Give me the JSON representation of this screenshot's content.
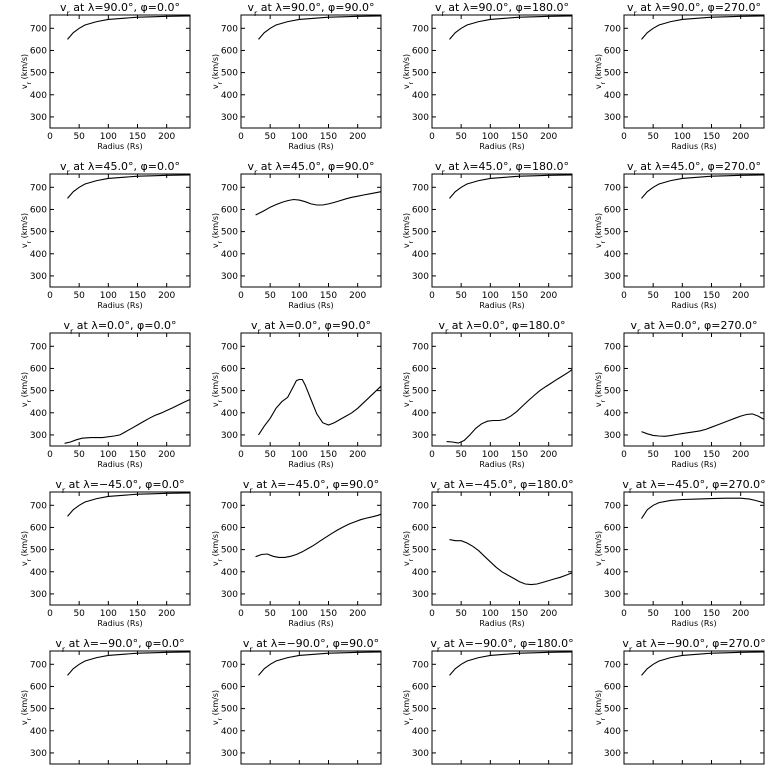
{
  "figure": {
    "axes": {
      "xlabel": "Radius (Rs)",
      "ylabel": "vr (km/s)",
      "xlim": [
        0,
        240
      ],
      "ylim": [
        250,
        760
      ],
      "xticks": [
        0,
        50,
        100,
        150,
        200
      ],
      "yticks": [
        300,
        400,
        500,
        600,
        700
      ],
      "grid": false
    },
    "line_color": "#000000"
  },
  "chart_data": [
    {
      "type": "line",
      "title": "vr at λ=90.0°, φ=0.0°",
      "xlabel": "Radius (Rs)",
      "ylabel": "vr (km/s)",
      "xlim": [
        0,
        240
      ],
      "ylim": [
        250,
        760
      ],
      "series": [
        {
          "x": [
            30,
            40,
            50,
            60,
            80,
            100,
            125,
            150,
            175,
            200,
            225,
            240
          ],
          "y": [
            650,
            680,
            700,
            715,
            730,
            740,
            745,
            750,
            752,
            754,
            755,
            756
          ]
        }
      ]
    },
    {
      "type": "line",
      "title": "vr at λ=90.0°, φ=90.0°",
      "xlabel": "Radius (Rs)",
      "ylabel": "vr (km/s)",
      "xlim": [
        0,
        240
      ],
      "ylim": [
        250,
        760
      ],
      "series": [
        {
          "x": [
            30,
            40,
            50,
            60,
            80,
            100,
            125,
            150,
            175,
            200,
            225,
            240
          ],
          "y": [
            650,
            680,
            700,
            715,
            730,
            740,
            745,
            750,
            752,
            754,
            755,
            756
          ]
        }
      ]
    },
    {
      "type": "line",
      "title": "vr at λ=90.0°, φ=180.0°",
      "xlabel": "Radius (Rs)",
      "ylabel": "vr (km/s)",
      "xlim": [
        0,
        240
      ],
      "ylim": [
        250,
        760
      ],
      "series": [
        {
          "x": [
            30,
            40,
            50,
            60,
            80,
            100,
            125,
            150,
            175,
            200,
            225,
            240
          ],
          "y": [
            650,
            680,
            700,
            715,
            730,
            740,
            745,
            750,
            752,
            754,
            755,
            756
          ]
        }
      ]
    },
    {
      "type": "line",
      "title": "vr at λ=90.0°, φ=270.0°",
      "xlabel": "Radius (Rs)",
      "ylabel": "vr (km/s)",
      "xlim": [
        0,
        240
      ],
      "ylim": [
        250,
        760
      ],
      "series": [
        {
          "x": [
            30,
            40,
            50,
            60,
            80,
            100,
            125,
            150,
            175,
            200,
            225,
            240
          ],
          "y": [
            650,
            680,
            700,
            715,
            730,
            740,
            745,
            750,
            752,
            754,
            755,
            756
          ]
        }
      ]
    },
    {
      "type": "line",
      "title": "vr at λ=45.0°, φ=0.0°",
      "xlabel": "Radius (Rs)",
      "ylabel": "vr (km/s)",
      "xlim": [
        0,
        240
      ],
      "ylim": [
        250,
        760
      ],
      "series": [
        {
          "x": [
            30,
            40,
            50,
            60,
            80,
            100,
            125,
            150,
            175,
            200,
            225,
            240
          ],
          "y": [
            650,
            680,
            700,
            715,
            730,
            740,
            745,
            750,
            752,
            754,
            755,
            756
          ]
        }
      ]
    },
    {
      "type": "line",
      "title": "vr at λ=45.0°, φ=90.0°",
      "xlabel": "Radius (Rs)",
      "ylabel": "vr (km/s)",
      "xlim": [
        0,
        240
      ],
      "ylim": [
        250,
        760
      ],
      "series": [
        {
          "x": [
            25,
            40,
            50,
            60,
            70,
            80,
            90,
            100,
            110,
            120,
            130,
            140,
            150,
            160,
            170,
            180,
            190,
            200,
            210,
            220,
            230,
            240
          ],
          "y": [
            575,
            595,
            610,
            622,
            632,
            640,
            645,
            642,
            635,
            625,
            620,
            620,
            625,
            632,
            640,
            648,
            655,
            660,
            665,
            670,
            675,
            680
          ]
        }
      ]
    },
    {
      "type": "line",
      "title": "vr at λ=45.0°, φ=180.0°",
      "xlabel": "Radius (Rs)",
      "ylabel": "vr (km/s)",
      "xlim": [
        0,
        240
      ],
      "ylim": [
        250,
        760
      ],
      "series": [
        {
          "x": [
            30,
            40,
            50,
            60,
            80,
            100,
            125,
            150,
            175,
            200,
            225,
            240
          ],
          "y": [
            650,
            680,
            700,
            715,
            730,
            740,
            745,
            750,
            752,
            754,
            755,
            756
          ]
        }
      ]
    },
    {
      "type": "line",
      "title": "vr at λ=45.0°, φ=270.0°",
      "xlabel": "Radius (Rs)",
      "ylabel": "vr (km/s)",
      "xlim": [
        0,
        240
      ],
      "ylim": [
        250,
        760
      ],
      "series": [
        {
          "x": [
            30,
            40,
            50,
            60,
            80,
            100,
            125,
            150,
            175,
            200,
            225,
            240
          ],
          "y": [
            650,
            680,
            700,
            715,
            730,
            740,
            745,
            750,
            752,
            754,
            755,
            756
          ]
        }
      ]
    },
    {
      "type": "line",
      "title": "vr at λ=0.0°, φ=0.0°",
      "xlabel": "Radius (Rs)",
      "ylabel": "vr (km/s)",
      "xlim": [
        0,
        240
      ],
      "ylim": [
        250,
        760
      ],
      "series": [
        {
          "x": [
            25,
            35,
            45,
            55,
            70,
            90,
            110,
            120,
            130,
            140,
            150,
            160,
            170,
            180,
            190,
            200,
            210,
            220,
            230,
            240
          ],
          "y": [
            262,
            268,
            278,
            285,
            288,
            288,
            295,
            300,
            315,
            330,
            345,
            360,
            375,
            388,
            398,
            410,
            422,
            435,
            448,
            460
          ]
        }
      ]
    },
    {
      "type": "line",
      "title": "vr at λ=0.0°, φ=90.0°",
      "xlabel": "Radius (Rs)",
      "ylabel": "vr (km/s)",
      "xlim": [
        0,
        240
      ],
      "ylim": [
        250,
        760
      ],
      "series": [
        {
          "x": [
            30,
            40,
            50,
            60,
            70,
            80,
            90,
            95,
            100,
            105,
            110,
            120,
            130,
            140,
            150,
            160,
            170,
            180,
            190,
            200,
            210,
            220,
            230,
            240
          ],
          "y": [
            300,
            340,
            375,
            420,
            450,
            470,
            520,
            545,
            550,
            550,
            525,
            460,
            395,
            355,
            345,
            355,
            370,
            385,
            400,
            420,
            445,
            470,
            495,
            520
          ]
        }
      ]
    },
    {
      "type": "line",
      "title": "vr at λ=0.0°, φ=180.0°",
      "xlabel": "Radius (Rs)",
      "ylabel": "vr (km/s)",
      "xlim": [
        0,
        240
      ],
      "ylim": [
        250,
        760
      ],
      "series": [
        {
          "x": [
            25,
            35,
            45,
            55,
            65,
            75,
            85,
            95,
            105,
            115,
            125,
            135,
            145,
            155,
            165,
            175,
            185,
            195,
            205,
            215,
            225,
            235,
            240
          ],
          "y": [
            270,
            268,
            263,
            275,
            300,
            330,
            350,
            362,
            365,
            365,
            370,
            385,
            405,
            430,
            455,
            478,
            500,
            518,
            535,
            552,
            568,
            585,
            595
          ]
        }
      ]
    },
    {
      "type": "line",
      "title": "vr at λ=0.0°, φ=270.0°",
      "xlabel": "Radius (Rs)",
      "ylabel": "vr (km/s)",
      "xlim": [
        0,
        240
      ],
      "ylim": [
        250,
        760
      ],
      "series": [
        {
          "x": [
            30,
            40,
            50,
            60,
            70,
            80,
            90,
            100,
            110,
            120,
            130,
            140,
            150,
            160,
            170,
            180,
            190,
            200,
            210,
            220,
            230,
            240
          ],
          "y": [
            315,
            305,
            298,
            295,
            294,
            297,
            302,
            306,
            310,
            314,
            318,
            325,
            335,
            345,
            355,
            365,
            375,
            385,
            392,
            395,
            385,
            370
          ]
        }
      ]
    },
    {
      "type": "line",
      "title": "vr at λ=−45.0°, φ=0.0°",
      "xlabel": "Radius (Rs)",
      "ylabel": "vr (km/s)",
      "xlim": [
        0,
        240
      ],
      "ylim": [
        250,
        760
      ],
      "series": [
        {
          "x": [
            30,
            40,
            50,
            60,
            80,
            100,
            125,
            150,
            175,
            200,
            225,
            240
          ],
          "y": [
            650,
            680,
            700,
            715,
            730,
            740,
            745,
            750,
            752,
            754,
            755,
            756
          ]
        }
      ]
    },
    {
      "type": "line",
      "title": "vr at λ=−45.0°, φ=90.0°",
      "xlabel": "Radius (Rs)",
      "ylabel": "vr (km/s)",
      "xlim": [
        0,
        240
      ],
      "ylim": [
        250,
        760
      ],
      "series": [
        {
          "x": [
            25,
            35,
            45,
            55,
            65,
            75,
            85,
            95,
            105,
            115,
            125,
            135,
            145,
            155,
            165,
            175,
            185,
            195,
            205,
            215,
            225,
            235,
            240
          ],
          "y": [
            468,
            478,
            480,
            470,
            465,
            465,
            470,
            478,
            490,
            505,
            520,
            538,
            555,
            572,
            588,
            602,
            615,
            625,
            635,
            642,
            648,
            655,
            660
          ]
        }
      ]
    },
    {
      "type": "line",
      "title": "vr at λ=−45.0°, φ=180.0°",
      "xlabel": "Radius (Rs)",
      "ylabel": "vr (km/s)",
      "xlim": [
        0,
        240
      ],
      "ylim": [
        250,
        760
      ],
      "series": [
        {
          "x": [
            30,
            40,
            50,
            60,
            70,
            80,
            90,
            100,
            110,
            120,
            130,
            140,
            150,
            160,
            170,
            180,
            190,
            200,
            210,
            220,
            230,
            240
          ],
          "y": [
            545,
            540,
            540,
            530,
            515,
            495,
            470,
            445,
            420,
            400,
            385,
            370,
            355,
            345,
            342,
            345,
            352,
            360,
            368,
            375,
            385,
            395
          ]
        }
      ]
    },
    {
      "type": "line",
      "title": "vr at λ=−45.0°, φ=270.0°",
      "xlabel": "Radius (Rs)",
      "ylabel": "vr (km/s)",
      "xlim": [
        0,
        240
      ],
      "ylim": [
        250,
        760
      ],
      "series": [
        {
          "x": [
            30,
            40,
            50,
            60,
            80,
            100,
            125,
            150,
            175,
            200,
            215,
            225,
            235,
            240
          ],
          "y": [
            640,
            680,
            700,
            712,
            722,
            726,
            728,
            730,
            732,
            732,
            728,
            722,
            715,
            710
          ]
        }
      ]
    },
    {
      "type": "line",
      "title": "vr at λ=−90.0°, φ=0.0°",
      "xlabel": "Radius (Rs)",
      "ylabel": "vr (km/s)",
      "xlim": [
        0,
        240
      ],
      "ylim": [
        250,
        760
      ],
      "series": [
        {
          "x": [
            30,
            40,
            50,
            60,
            80,
            100,
            125,
            150,
            175,
            200,
            225,
            240
          ],
          "y": [
            650,
            680,
            700,
            715,
            730,
            740,
            745,
            750,
            752,
            754,
            755,
            756
          ]
        }
      ]
    },
    {
      "type": "line",
      "title": "vr at λ=−90.0°, φ=90.0°",
      "xlabel": "Radius (Rs)",
      "ylabel": "vr (km/s)",
      "xlim": [
        0,
        240
      ],
      "ylim": [
        250,
        760
      ],
      "series": [
        {
          "x": [
            30,
            40,
            50,
            60,
            80,
            100,
            125,
            150,
            175,
            200,
            225,
            240
          ],
          "y": [
            650,
            680,
            700,
            715,
            730,
            740,
            745,
            750,
            752,
            754,
            755,
            756
          ]
        }
      ]
    },
    {
      "type": "line",
      "title": "vr at λ=−90.0°, φ=180.0°",
      "xlabel": "Radius (Rs)",
      "ylabel": "vr (km/s)",
      "xlim": [
        0,
        240
      ],
      "ylim": [
        250,
        760
      ],
      "series": [
        {
          "x": [
            30,
            40,
            50,
            60,
            80,
            100,
            125,
            150,
            175,
            200,
            225,
            240
          ],
          "y": [
            650,
            680,
            700,
            715,
            730,
            740,
            745,
            750,
            752,
            754,
            755,
            756
          ]
        }
      ]
    },
    {
      "type": "line",
      "title": "vr at λ=−90.0°, φ=270.0°",
      "xlabel": "Radius (Rs)",
      "ylabel": "vr (km/s)",
      "xlim": [
        0,
        240
      ],
      "ylim": [
        250,
        760
      ],
      "series": [
        {
          "x": [
            30,
            40,
            50,
            60,
            80,
            100,
            125,
            150,
            175,
            200,
            225,
            240
          ],
          "y": [
            650,
            680,
            700,
            715,
            730,
            740,
            745,
            750,
            752,
            754,
            755,
            756
          ]
        }
      ]
    }
  ]
}
